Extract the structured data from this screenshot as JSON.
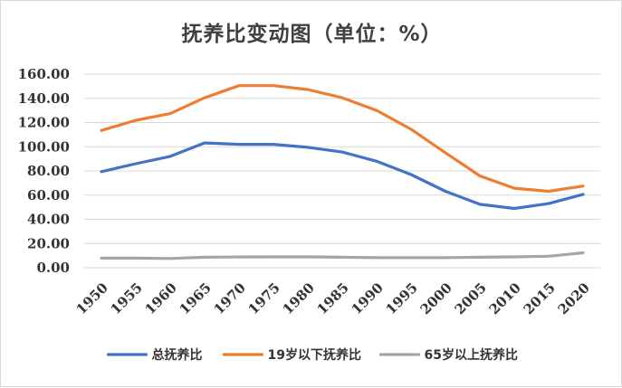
{
  "chart_data": {
    "type": "line",
    "title": "抚养比变动图（单位：%）",
    "x": [
      "1950",
      "1955",
      "1960",
      "1965",
      "1970",
      "1975",
      "1980",
      "1985",
      "1990",
      "1995",
      "2000",
      "2005",
      "2010",
      "2015",
      "2020"
    ],
    "ylim": [
      0,
      160
    ],
    "yticks": [
      "0.00",
      "20.00",
      "40.00",
      "60.00",
      "80.00",
      "100.00",
      "120.00",
      "140.00",
      "160.00"
    ],
    "grid": true,
    "legend_position": "bottom",
    "series": [
      {
        "name": "总抚养比",
        "color": "#4472c4",
        "values": [
          79.4,
          86.0,
          92.0,
          103.2,
          102.0,
          102.0,
          99.5,
          95.6,
          88.0,
          77.0,
          63.2,
          52.4,
          49.0,
          53.0,
          60.6
        ]
      },
      {
        "name": "19岁以下抚养比",
        "color": "#ed7d31",
        "values": [
          113.5,
          121.9,
          127.4,
          140.5,
          150.5,
          150.5,
          147.3,
          140.5,
          130.0,
          114.5,
          95.0,
          75.9,
          65.7,
          63.2,
          67.5
        ]
      },
      {
        "name": "65岁以上抚养比",
        "color": "#a5a5a5",
        "values": [
          7.9,
          7.9,
          7.6,
          8.7,
          8.9,
          9.0,
          9.0,
          8.7,
          8.3,
          8.3,
          8.3,
          8.7,
          9.0,
          9.5,
          12.3
        ]
      }
    ]
  }
}
